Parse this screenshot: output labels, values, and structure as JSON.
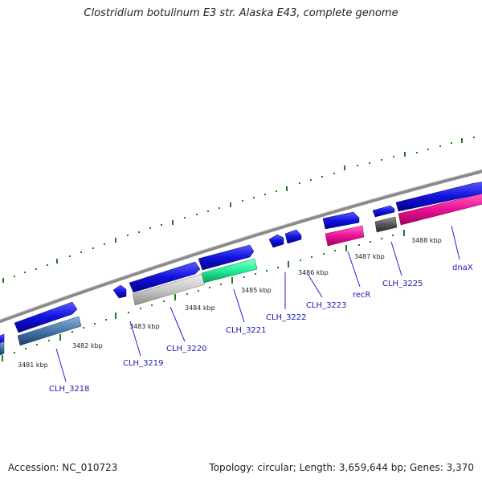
{
  "title": "Clostridium botulinum E3 str. Alaska E43, complete genome",
  "accession": "Accession: NC_010723",
  "summary": "Topology: circular; Length: 3,659,644 bp; Genes: 3,370",
  "colors": {
    "backbone": "#8a8a8a",
    "ticks": "#1d7a1d",
    "cds_forward": "#1111dd",
    "gene_label": "#1a1ab0",
    "pink_feature": "#ee1199",
    "green_feature": "#22ee99",
    "grey_feature": "#c8c8c8",
    "steel_feature": "#4477aa",
    "dark_feature": "#555555"
  },
  "scale_labels": [
    "3481 kbp",
    "3482 kbp",
    "3483 kbp",
    "3484 kbp",
    "3485 kbp",
    "3486 kbp",
    "3487 kbp",
    "3488 kbp"
  ],
  "gene_labels": [
    "CLH_3218",
    "CLH_3219",
    "CLH_3220",
    "CLH_3221",
    "CLH_3222",
    "CLH_3223",
    "recR",
    "CLH_3225",
    "dnaX"
  ]
}
